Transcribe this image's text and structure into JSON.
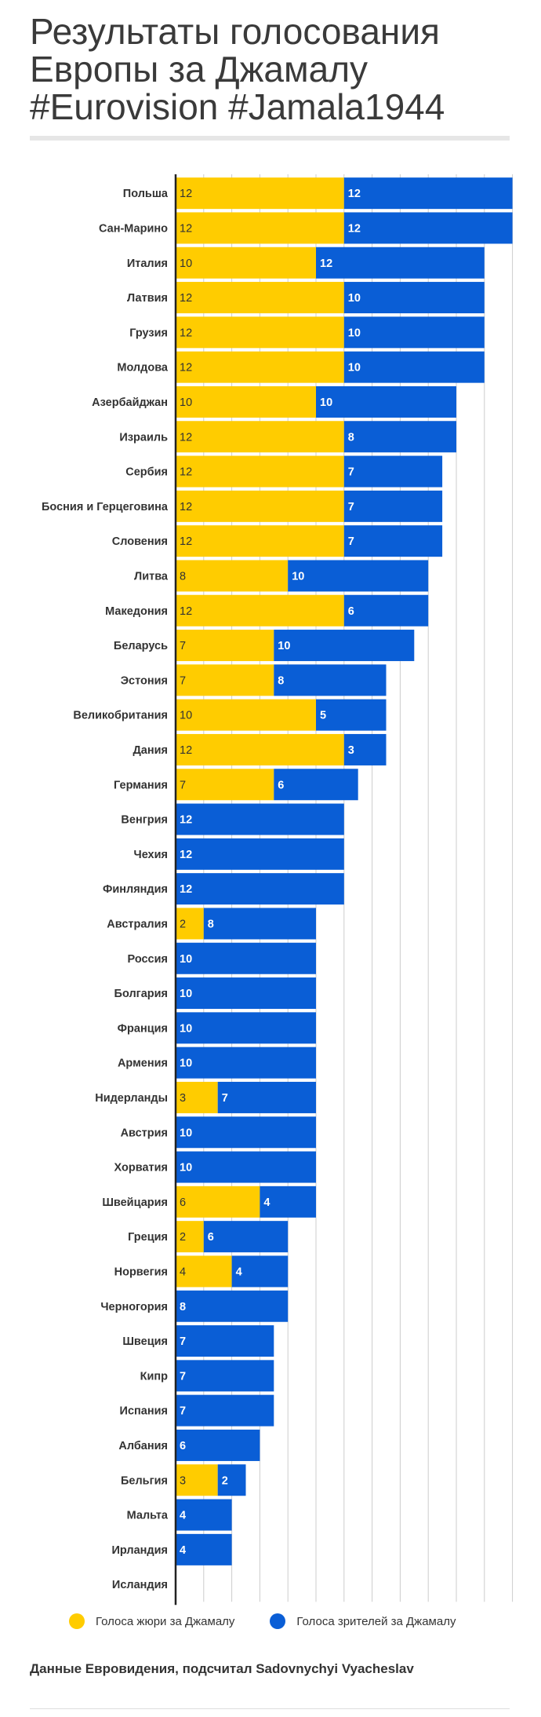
{
  "title_lines": [
    "Результаты голосования",
    "Европы за Джамалу",
    "#Eurovision #Jamala1944"
  ],
  "colors": {
    "jury": "#ffcc00",
    "audience": "#0a5ed6",
    "text": "#333333",
    "grid": "#cccccc"
  },
  "legend": {
    "jury": "Голоса жюри за Джамалу",
    "audience": "Голоса зрителей за Джамалу"
  },
  "source": "Данные Евровидения, подсчитал Sadovnychyi Vyacheslav",
  "chart_data": {
    "type": "bar",
    "orientation": "horizontal",
    "stacked": true,
    "xlim": [
      0,
      24
    ],
    "xticks": [
      0,
      2,
      4,
      6,
      8,
      10,
      12,
      14,
      16,
      18,
      20,
      22,
      24
    ],
    "grid": true,
    "legend_position": "bottom",
    "categories": [
      "Польша",
      "Сан-Марино",
      "Италия",
      "Латвия",
      "Грузия",
      "Молдова",
      "Азербайджан",
      "Израиль",
      "Сербия",
      "Босния и Герцеговина",
      "Словения",
      "Литва",
      "Македония",
      "Беларусь",
      "Эстония",
      "Великобритания",
      "Дания",
      "Германия",
      "Венгрия",
      "Чехия",
      "Финляндия",
      "Австралия",
      "Россия",
      "Болгария",
      "Франция",
      "Армения",
      "Нидерланды",
      "Австрия",
      "Хорватия",
      "Швейцария",
      "Греция",
      "Норвегия",
      "Черногория",
      "Швеция",
      "Кипр",
      "Испания",
      "Албания",
      "Бельгия",
      "Мальта",
      "Ирландия",
      "Исландия"
    ],
    "series": [
      {
        "name": "Голоса жюри за Джамалу",
        "values": [
          12,
          12,
          10,
          12,
          12,
          12,
          10,
          12,
          12,
          12,
          12,
          8,
          12,
          7,
          7,
          10,
          12,
          7,
          0,
          0,
          0,
          2,
          0,
          0,
          0,
          0,
          3,
          0,
          0,
          6,
          2,
          4,
          0,
          0,
          0,
          0,
          0,
          3,
          0,
          0,
          0
        ]
      },
      {
        "name": "Голоса зрителей за Джамалу",
        "values": [
          12,
          12,
          12,
          10,
          10,
          10,
          10,
          8,
          7,
          7,
          7,
          10,
          6,
          10,
          8,
          5,
          3,
          6,
          12,
          12,
          12,
          8,
          10,
          10,
          10,
          10,
          7,
          10,
          10,
          4,
          6,
          4,
          8,
          7,
          7,
          7,
          6,
          2,
          4,
          4,
          0
        ]
      }
    ]
  }
}
